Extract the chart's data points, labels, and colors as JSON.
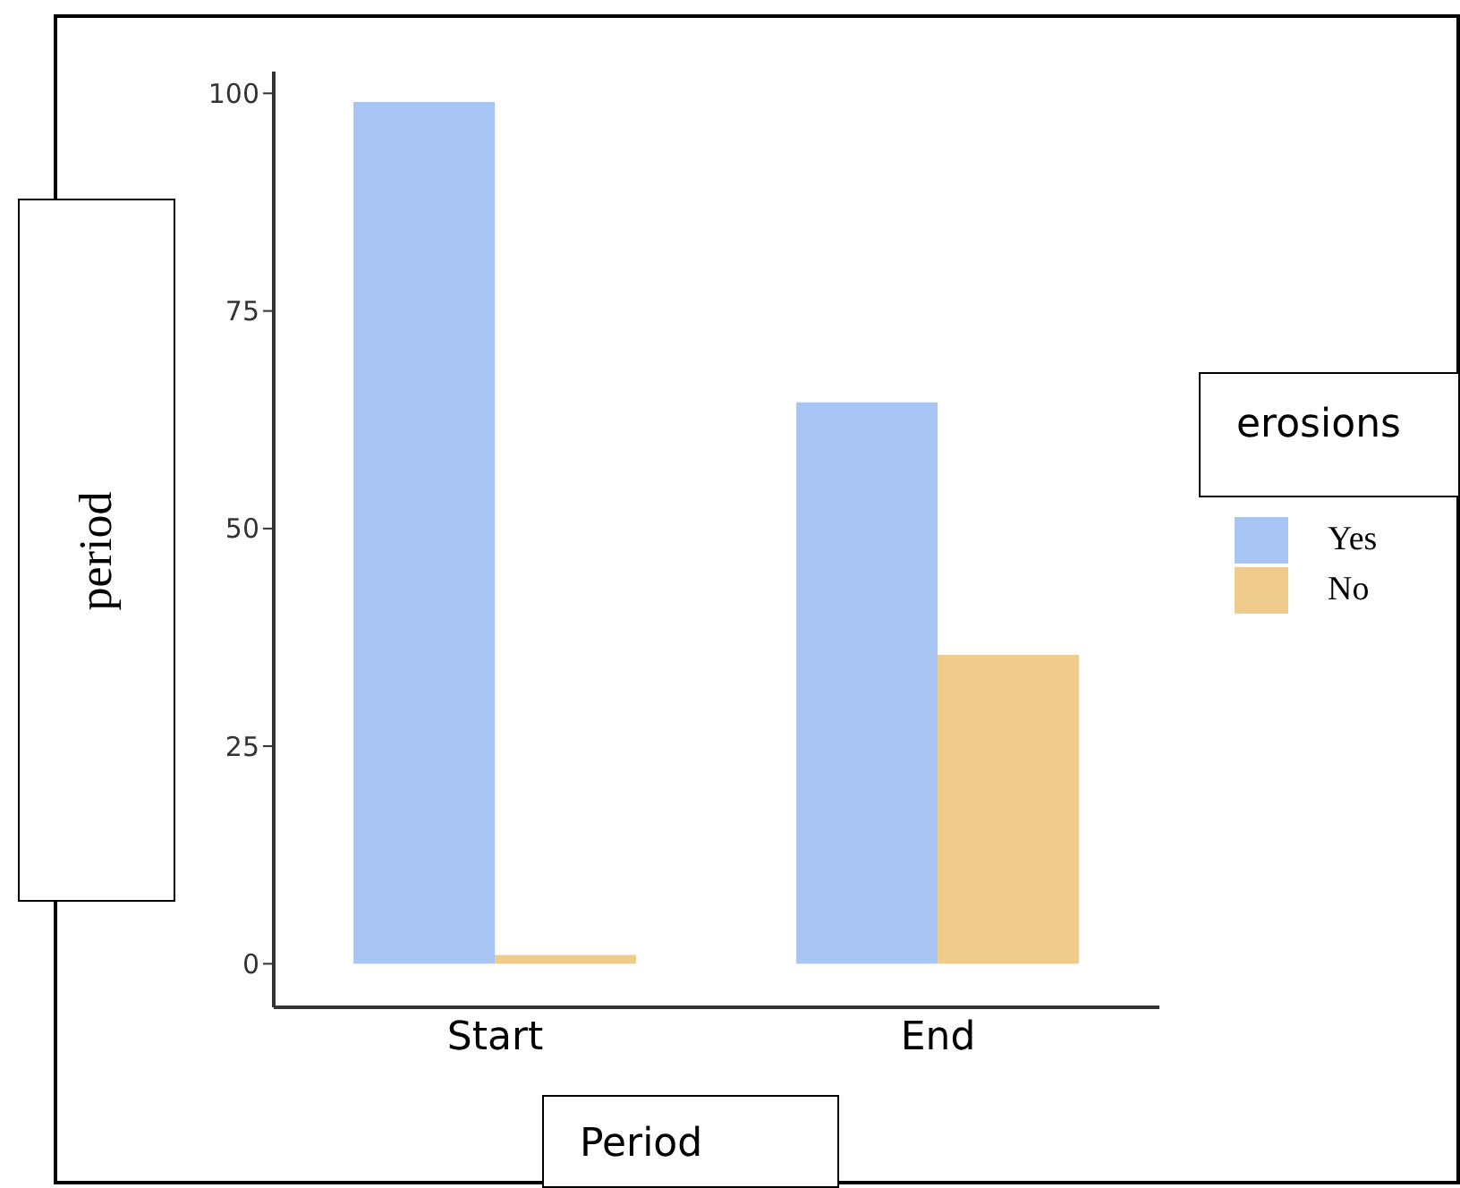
{
  "chart_data": {
    "type": "bar",
    "xlabel": "Period",
    "ylabel": "period",
    "legend_title": "erosions",
    "categories": [
      "Start",
      "End"
    ],
    "series": [
      {
        "name": "Yes",
        "color": "#a7c4f2",
        "values": [
          99,
          64.5
        ]
      },
      {
        "name": "No",
        "color": "#f0cc8c",
        "values": [
          1,
          35.5
        ]
      }
    ],
    "ylim": [
      -5,
      102.5
    ],
    "yticks": [
      0,
      25,
      50,
      75,
      100
    ],
    "grid": false,
    "legend": "right"
  }
}
